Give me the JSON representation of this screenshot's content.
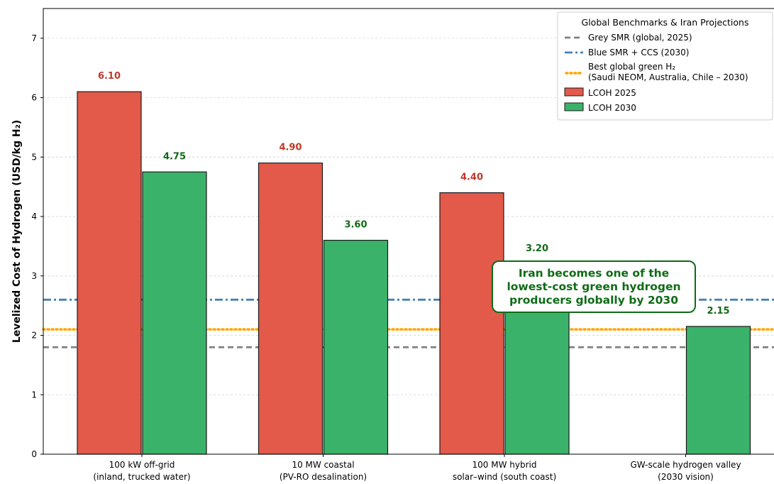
{
  "chart_data": {
    "type": "bar",
    "ylabel": "Levelized Cost of Hydrogen (USD/kg H₂)",
    "ylim": [
      0,
      7.5
    ],
    "yticks": [
      "0",
      "1",
      "2",
      "3",
      "4",
      "5",
      "6",
      "7"
    ],
    "grid": "y-dashed",
    "categories": [
      [
        "100 kW off-grid",
        "(inland, trucked water)"
      ],
      [
        "10 MW coastal",
        "(PV-RO desalination)"
      ],
      [
        "100 MW hybrid",
        "solar–wind (south coast)"
      ],
      [
        "GW-scale hydrogen valley",
        "(2030 vision)"
      ]
    ],
    "series": [
      {
        "name": "LCOH 2025",
        "color": "#e35a4a",
        "label_color": "#c0392b",
        "values": [
          6.1,
          4.9,
          4.4,
          0.0
        ],
        "labels": [
          "6.10",
          "4.90",
          "4.40",
          ""
        ]
      },
      {
        "name": "LCOH 2030",
        "color": "#3bb26a",
        "label_color": "#0f6b16",
        "values": [
          4.75,
          3.6,
          3.2,
          2.15
        ],
        "labels": [
          "4.75",
          "3.60",
          "3.20",
          "2.15"
        ]
      }
    ],
    "reference_lines": [
      {
        "name": "Grey SMR (global, 2025)",
        "value": 1.8,
        "color": "#808080",
        "style": "dashed"
      },
      {
        "name": "Blue SMR + CCS (2030)",
        "value": 2.6,
        "color": "#4682b4",
        "style": "dashdot"
      },
      {
        "name": "Best global green H₂",
        "name_line2": "(Saudi NEOM, Australia, Chile – 2030)",
        "value": 2.1,
        "color": "#ffa500",
        "style": "dotted"
      }
    ],
    "legend": {
      "title": "Global Benchmarks & Iran Projections",
      "placement": "top-right"
    },
    "annotation": {
      "lines": [
        "Iran becomes one of the",
        "lowest-cost green hydrogen",
        "producers globally by 2030"
      ],
      "color": "#0f6b16"
    }
  }
}
